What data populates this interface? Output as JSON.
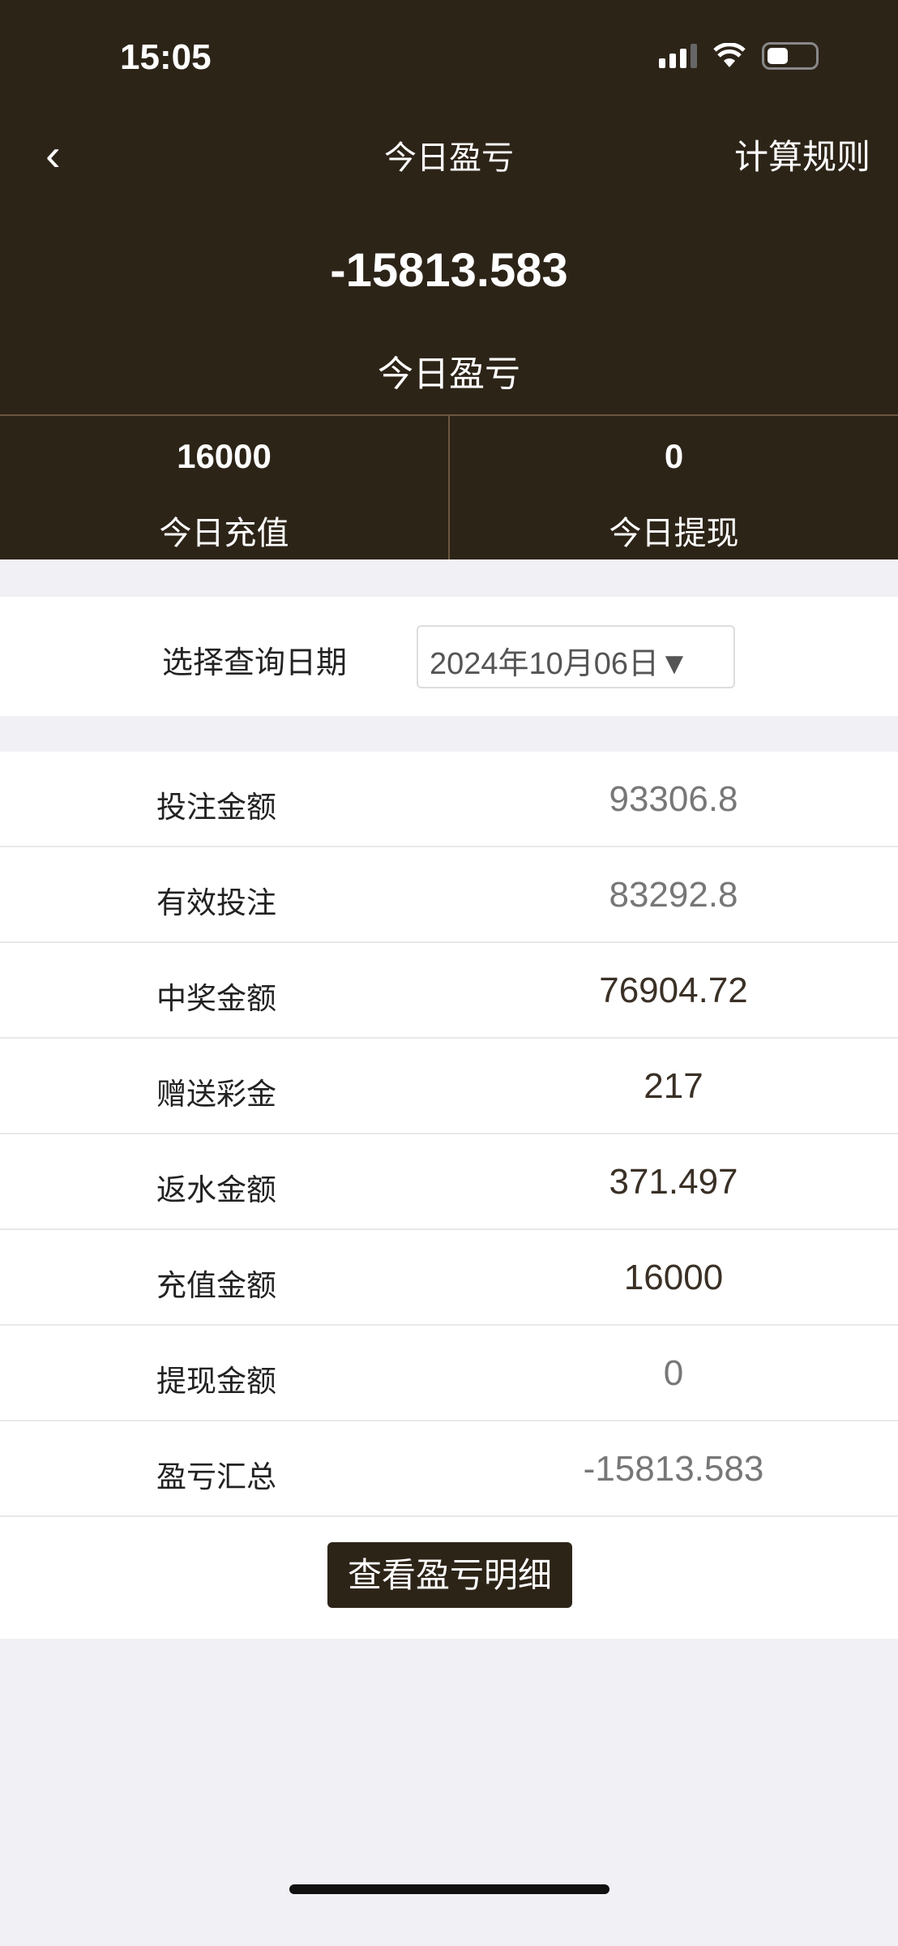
{
  "status_bar": {
    "time": "15:05",
    "icons": [
      "signal-icon",
      "wifi-icon",
      "battery-icon"
    ]
  },
  "nav": {
    "back_icon": "chevron-left-icon",
    "title": "今日盈亏",
    "rules": "计算规则"
  },
  "summary": {
    "amount": "-15813.583",
    "label": "今日盈亏"
  },
  "stats": [
    {
      "value": "16000",
      "label": "今日充值"
    },
    {
      "value": "0",
      "label": "今日提现"
    }
  ],
  "date": {
    "label": "选择查询日期",
    "value": "2024年10月06日▼"
  },
  "rows": [
    {
      "label": "投注金额",
      "value": "93306.8"
    },
    {
      "label": "有效投注",
      "value": "83292.8"
    },
    {
      "label": "中奖金额",
      "value": "76904.72"
    },
    {
      "label": "赠送彩金",
      "value": "217"
    },
    {
      "label": "返水金额",
      "value": "371.497"
    },
    {
      "label": "充值金额",
      "value": "16000"
    },
    {
      "label": "提现金额",
      "value": "0"
    },
    {
      "label": "盈亏汇总",
      "value": "-15813.583"
    }
  ],
  "button": "查看盈亏明细",
  "colors": {
    "header_bg": "#2d2418",
    "page_bg": "#f1f1f5"
  }
}
